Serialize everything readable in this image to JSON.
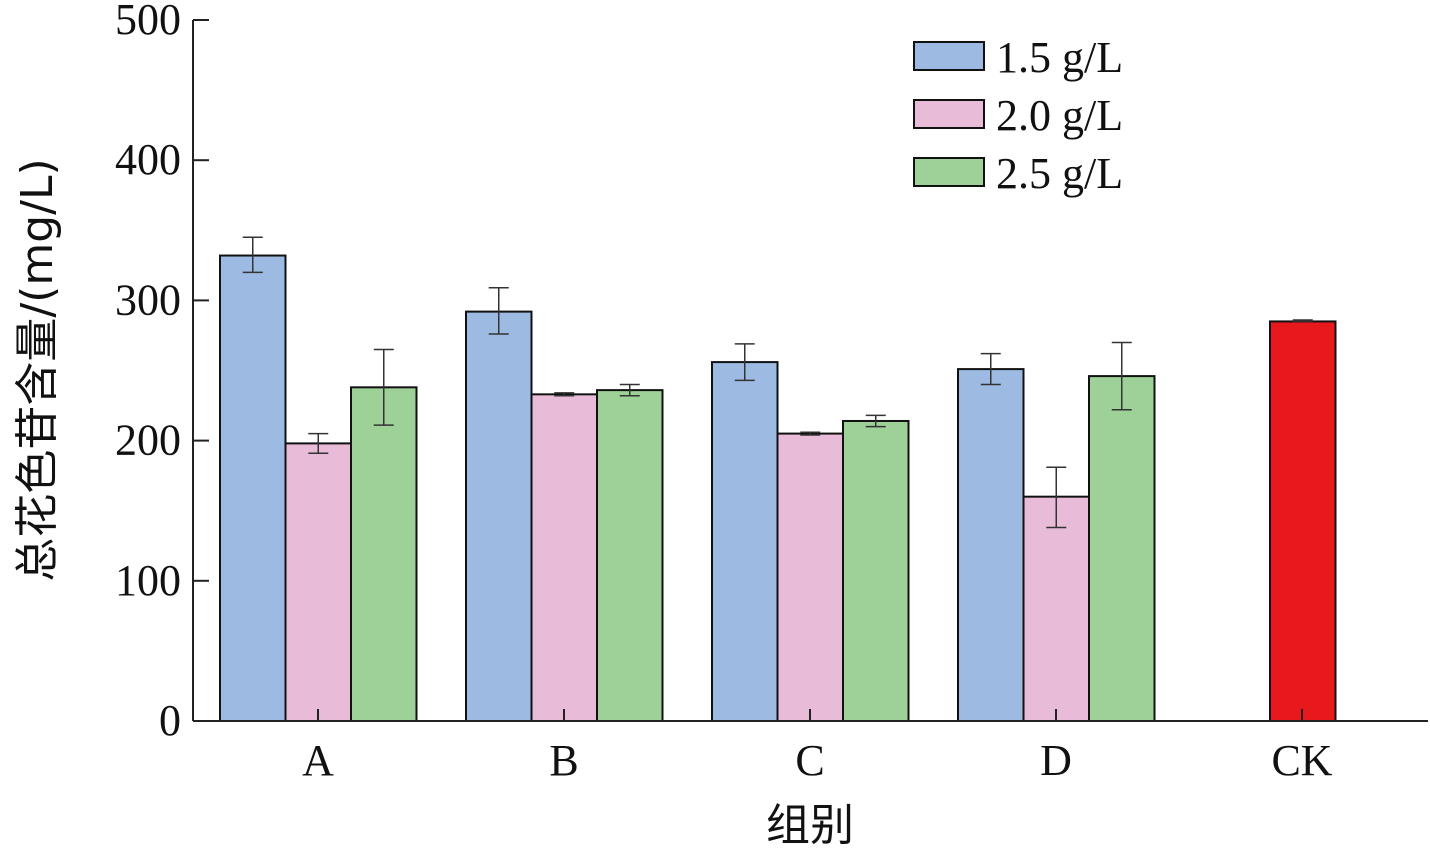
{
  "chart_data": {
    "type": "bar",
    "title": "",
    "xlabel": "组别",
    "ylabel": "总花色苷含量/(mg/L)",
    "ylim": [
      0,
      500
    ],
    "yticks": [
      0,
      100,
      200,
      300,
      400,
      500
    ],
    "categories": [
      "A",
      "B",
      "C",
      "D",
      "CK"
    ],
    "legend_position": "top-right",
    "series": [
      {
        "name": "1.5 g/L",
        "color": "#9dbbe2",
        "values": [
          332,
          292,
          256,
          251,
          null
        ],
        "errors": [
          [
            320,
            345
          ],
          [
            276,
            309
          ],
          [
            243,
            269
          ],
          [
            240,
            262
          ],
          null
        ]
      },
      {
        "name": "2.0 g/L",
        "color": "#e8bcd8",
        "values": [
          198,
          233,
          205,
          160,
          null
        ],
        "errors": [
          [
            191,
            205
          ],
          [
            232,
            234
          ],
          [
            204,
            206
          ],
          [
            138,
            181
          ],
          null
        ]
      },
      {
        "name": "2.5 g/L",
        "color": "#9ed198",
        "values": [
          238,
          236,
          214,
          246,
          null
        ],
        "errors": [
          [
            211,
            265
          ],
          [
            232,
            240
          ],
          [
            210,
            218
          ],
          [
            222,
            270
          ],
          null
        ]
      },
      {
        "name": "CK",
        "color": "#e8191c",
        "values": [
          null,
          null,
          null,
          null,
          285
        ],
        "errors": [
          null,
          null,
          null,
          null,
          [
            285,
            286
          ]
        ],
        "in_legend": false
      }
    ]
  }
}
